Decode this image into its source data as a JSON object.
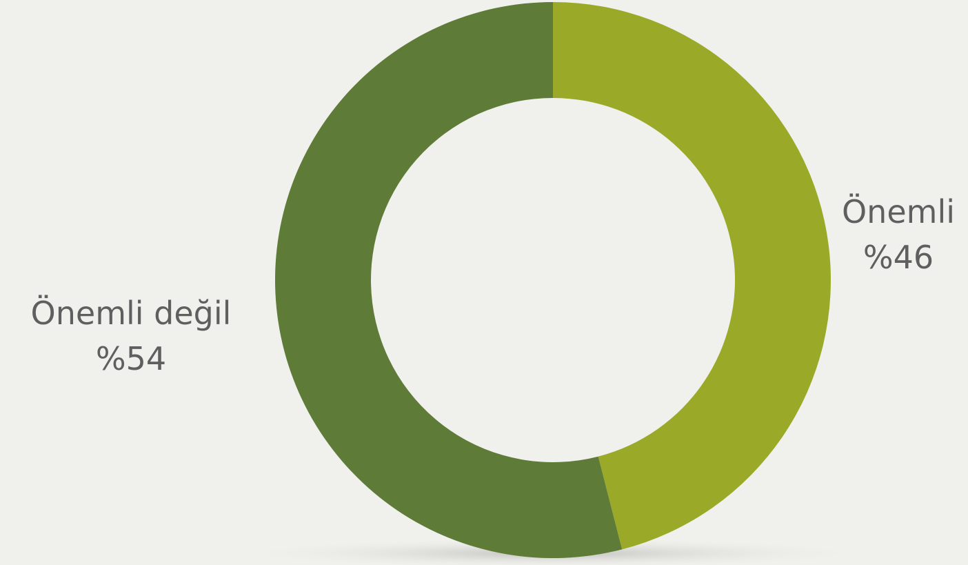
{
  "chart_data": {
    "type": "pie",
    "donut": true,
    "title": "",
    "legend": "none",
    "slices": [
      {
        "name": "Önemli",
        "value": 46,
        "label": "%46",
        "color": "#9aaa28"
      },
      {
        "name": "Önemli değil",
        "value": 54,
        "label": "%54",
        "color": "#5e7b37"
      }
    ]
  }
}
